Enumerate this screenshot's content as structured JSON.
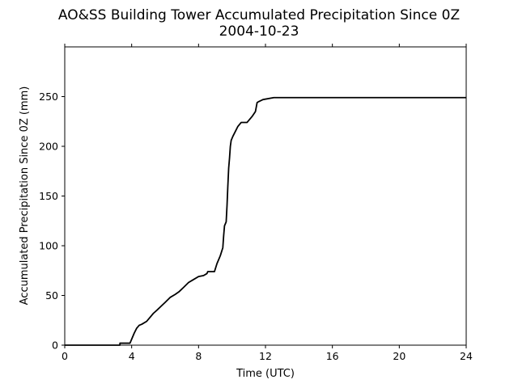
{
  "chart_data": {
    "type": "line",
    "title": "AO&SS Building Tower Accumulated Precipitation Since 0Z",
    "subtitle": "2004-10-23",
    "xlabel": "Time (UTC)",
    "ylabel": "Accumulated Precipitation Since 0Z (mm)",
    "xlim": [
      0,
      24
    ],
    "ylim": [
      0,
      300
    ],
    "xticks": [
      0,
      4,
      8,
      12,
      16,
      20,
      24
    ],
    "yticks": [
      0,
      50,
      100,
      150,
      200,
      250
    ],
    "grid": false,
    "series": [
      {
        "color": "#000000",
        "x": [
          0,
          3.3,
          3.3,
          3.9,
          4.0,
          4.15,
          4.3,
          4.45,
          4.6,
          4.9,
          5.1,
          5.3,
          5.5,
          5.75,
          6.0,
          6.3,
          6.6,
          6.85,
          7.1,
          7.4,
          7.7,
          8.0,
          8.3,
          8.5,
          8.55,
          8.95,
          9.1,
          9.3,
          9.45,
          9.5,
          9.55,
          9.65,
          9.7,
          9.75,
          9.8,
          9.85,
          9.9,
          9.95,
          10.05,
          10.2,
          10.35,
          10.55,
          10.9,
          11.2,
          11.4,
          11.5,
          11.6,
          11.85,
          12.5,
          24
        ],
        "y": [
          0,
          0,
          2,
          2,
          6,
          12,
          17,
          20,
          21,
          24,
          28,
          32,
          35,
          39,
          43,
          48,
          51,
          54,
          58,
          63,
          66,
          69,
          70,
          72,
          74,
          74,
          82,
          90,
          98,
          110,
          120,
          124,
          140,
          160,
          178,
          188,
          200,
          206,
          210,
          215,
          220,
          224,
          224,
          230,
          235,
          244,
          245,
          247,
          249,
          249
        ]
      }
    ]
  }
}
